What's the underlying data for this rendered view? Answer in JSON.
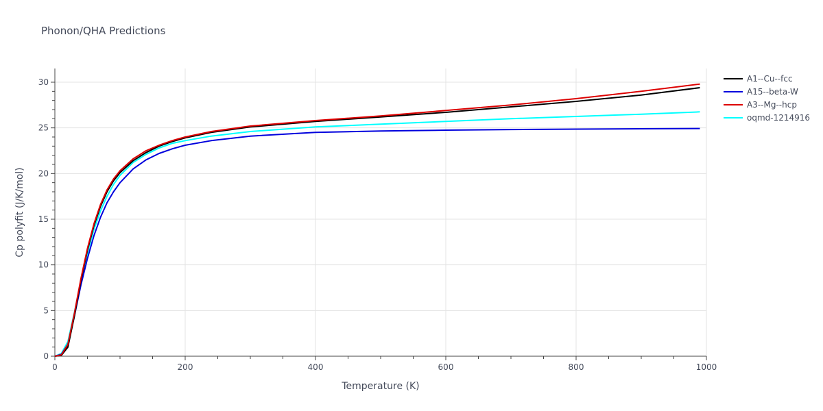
{
  "chart_data": {
    "type": "line",
    "title": "Phonon/QHA Predictions",
    "xlabel": "Temperature (K)",
    "ylabel": "Cp polyfit (J/K/mol)",
    "xlim": [
      0,
      1000
    ],
    "ylim": [
      0,
      31.5
    ],
    "xticks": [
      0,
      200,
      400,
      600,
      800,
      1000
    ],
    "yticks": [
      0,
      5,
      10,
      15,
      20,
      25,
      30
    ],
    "grid": true,
    "legend_position": "top-right-outside",
    "series": [
      {
        "name": "oqmd-1214916",
        "color": "#00ffff",
        "x": [
          0,
          10,
          20,
          30,
          40,
          50,
          60,
          70,
          80,
          90,
          100,
          120,
          140,
          160,
          180,
          200,
          240,
          300,
          400,
          500,
          600,
          700,
          800,
          900,
          990
        ],
        "y": [
          0,
          0.3,
          1.6,
          4.8,
          8.2,
          11.3,
          13.9,
          15.9,
          17.5,
          18.8,
          19.8,
          21.2,
          22.1,
          22.8,
          23.3,
          23.6,
          24.1,
          24.6,
          25.1,
          25.4,
          25.7,
          26.0,
          26.25,
          26.5,
          26.75
        ]
      },
      {
        "name": "A15--beta-W",
        "color": "#0000dd",
        "x": [
          0,
          10,
          20,
          30,
          40,
          50,
          60,
          70,
          80,
          90,
          100,
          120,
          140,
          160,
          180,
          200,
          240,
          300,
          400,
          500,
          600,
          700,
          800,
          900,
          990
        ],
        "y": [
          0,
          0.2,
          1.3,
          4.4,
          7.8,
          10.7,
          13.2,
          15.2,
          16.8,
          18.0,
          19.0,
          20.5,
          21.5,
          22.2,
          22.7,
          23.1,
          23.6,
          24.1,
          24.5,
          24.65,
          24.75,
          24.82,
          24.86,
          24.9,
          24.93
        ]
      },
      {
        "name": "A1--Cu--fcc",
        "color": "#000000",
        "x": [
          0,
          10,
          20,
          30,
          40,
          50,
          60,
          70,
          80,
          90,
          100,
          120,
          140,
          160,
          180,
          200,
          240,
          300,
          400,
          500,
          600,
          700,
          800,
          900,
          990
        ],
        "y": [
          0,
          0.1,
          1.0,
          4.4,
          8.3,
          11.6,
          14.3,
          16.4,
          18.0,
          19.2,
          20.1,
          21.4,
          22.3,
          23.0,
          23.5,
          23.9,
          24.5,
          25.1,
          25.7,
          26.2,
          26.7,
          27.3,
          27.9,
          28.6,
          29.4
        ]
      },
      {
        "name": "A3--Mg--hcp",
        "color": "#dd0000",
        "x": [
          0,
          10,
          20,
          30,
          40,
          50,
          60,
          70,
          80,
          90,
          100,
          120,
          140,
          160,
          180,
          200,
          240,
          300,
          400,
          500,
          600,
          700,
          800,
          900,
          990
        ],
        "y": [
          0,
          0.15,
          1.3,
          4.7,
          8.5,
          11.8,
          14.5,
          16.6,
          18.2,
          19.4,
          20.3,
          21.6,
          22.5,
          23.1,
          23.6,
          24.0,
          24.6,
          25.2,
          25.8,
          26.3,
          26.9,
          27.5,
          28.2,
          29.0,
          29.8
        ]
      }
    ],
    "legend_order": [
      "A1--Cu--fcc",
      "A15--beta-W",
      "A3--Mg--hcp",
      "oqmd-1214916"
    ]
  }
}
